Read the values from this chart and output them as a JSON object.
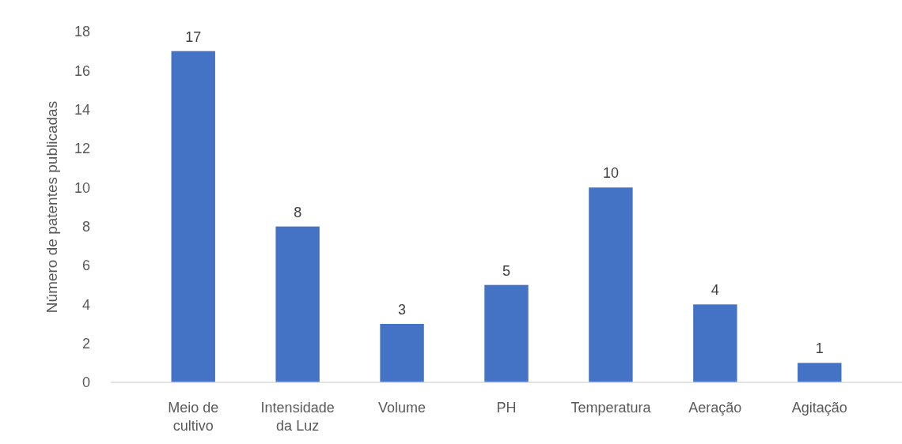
{
  "chart_data": {
    "type": "bar",
    "ylabel": "Número de patentes publicadas",
    "categories": [
      "Meio de cultivo",
      "Intensidade da Luz",
      "Volume",
      "PH",
      "Temperatura",
      "Aeração",
      "Agitação"
    ],
    "values": [
      17,
      8,
      3,
      5,
      10,
      4,
      1
    ],
    "color": "#4472c4",
    "data_labels": true,
    "ylim": [
      0,
      18
    ],
    "yticks": [
      0,
      2,
      4,
      6,
      8,
      10,
      12,
      14,
      16,
      18
    ],
    "grid": false
  }
}
